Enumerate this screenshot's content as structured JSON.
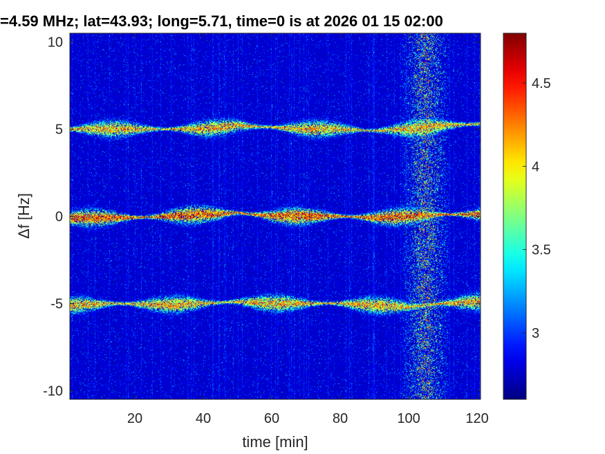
{
  "chart_data": {
    "type": "heatmap",
    "title": "=4.59 MHz;  lat=43.93; long=5.71, time=0 is at 2026 01 15 02:00",
    "xlabel": "time [min]",
    "ylabel": "Δf [Hz]",
    "xlim": [
      1,
      121
    ],
    "ylim": [
      -10.5,
      10.5
    ],
    "x_ticks": [
      20,
      40,
      60,
      80,
      100,
      120
    ],
    "y_ticks": [
      10,
      5,
      0,
      -5,
      -10
    ],
    "colorbar": {
      "colormap": "jet",
      "clim": [
        2.6,
        4.8
      ],
      "ticks": [
        3,
        3.5,
        4,
        4.5
      ]
    },
    "background_level": 2.7,
    "noise_band": {
      "x_start": 98,
      "x_end": 112,
      "level": 3.5
    },
    "series": [
      {
        "offset_hz": 5,
        "trace": [
          [
            1,
            5.0
          ],
          [
            15,
            5.0
          ],
          [
            30,
            5.0
          ],
          [
            40,
            5.0
          ],
          [
            50,
            5.2
          ],
          [
            60,
            5.1
          ],
          [
            70,
            5.0
          ],
          [
            80,
            5.0
          ],
          [
            90,
            4.9
          ],
          [
            100,
            5.0
          ],
          [
            110,
            5.2
          ],
          [
            121,
            5.3
          ]
        ],
        "peak_level": 4.4
      },
      {
        "offset_hz": 0,
        "trace": [
          [
            1,
            -0.1
          ],
          [
            15,
            -0.1
          ],
          [
            30,
            0.0
          ],
          [
            40,
            0.1
          ],
          [
            50,
            0.2
          ],
          [
            60,
            0.0
          ],
          [
            70,
            0.0
          ],
          [
            80,
            0.0
          ],
          [
            90,
            -0.1
          ],
          [
            100,
            0.0
          ],
          [
            110,
            0.1
          ],
          [
            121,
            0.1
          ]
        ],
        "peak_level": 4.7
      },
      {
        "offset_hz": -5,
        "trace": [
          [
            1,
            -5.1
          ],
          [
            15,
            -5.0
          ],
          [
            30,
            -5.1
          ],
          [
            40,
            -5.0
          ],
          [
            50,
            -4.9
          ],
          [
            60,
            -5.0
          ],
          [
            70,
            -5.0
          ],
          [
            80,
            -5.0
          ],
          [
            90,
            -5.1
          ],
          [
            100,
            -5.2
          ],
          [
            110,
            -5.0
          ],
          [
            121,
            -4.9
          ]
        ],
        "peak_level": 4.4
      }
    ]
  }
}
